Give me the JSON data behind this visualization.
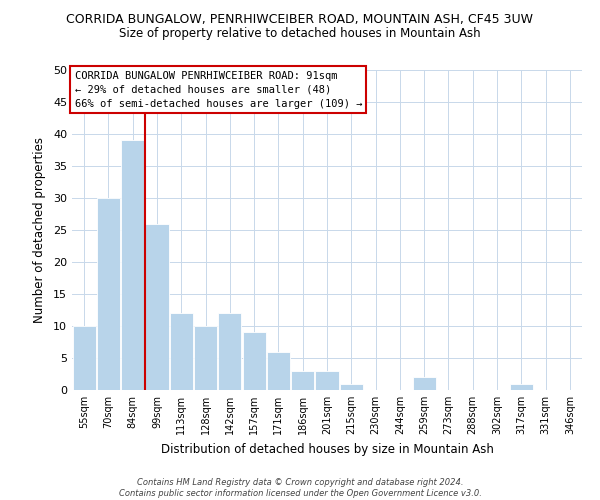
{
  "title": "CORRIDA BUNGALOW, PENRHIWCEIBER ROAD, MOUNTAIN ASH, CF45 3UW",
  "subtitle": "Size of property relative to detached houses in Mountain Ash",
  "xlabel": "Distribution of detached houses by size in Mountain Ash",
  "ylabel": "Number of detached properties",
  "bin_labels": [
    "55sqm",
    "70sqm",
    "84sqm",
    "99sqm",
    "113sqm",
    "128sqm",
    "142sqm",
    "157sqm",
    "171sqm",
    "186sqm",
    "201sqm",
    "215sqm",
    "230sqm",
    "244sqm",
    "259sqm",
    "273sqm",
    "288sqm",
    "302sqm",
    "317sqm",
    "331sqm",
    "346sqm"
  ],
  "bar_values": [
    10,
    30,
    39,
    26,
    12,
    10,
    12,
    9,
    6,
    3,
    3,
    1,
    0,
    0,
    2,
    0,
    0,
    0,
    1,
    0,
    0
  ],
  "bar_color": "#b8d4ea",
  "bar_edge_color": "#ffffff",
  "vline_color": "#cc0000",
  "ylim": [
    0,
    50
  ],
  "yticks": [
    0,
    5,
    10,
    15,
    20,
    25,
    30,
    35,
    40,
    45,
    50
  ],
  "annotation_box_text": "CORRIDA BUNGALOW PENRHIWCEIBER ROAD: 91sqm\n← 29% of detached houses are smaller (48)\n66% of semi-detached houses are larger (109) →",
  "footer_text": "Contains HM Land Registry data © Crown copyright and database right 2024.\nContains public sector information licensed under the Open Government Licence v3.0.",
  "background_color": "#ffffff",
  "grid_color": "#c8d8ea"
}
